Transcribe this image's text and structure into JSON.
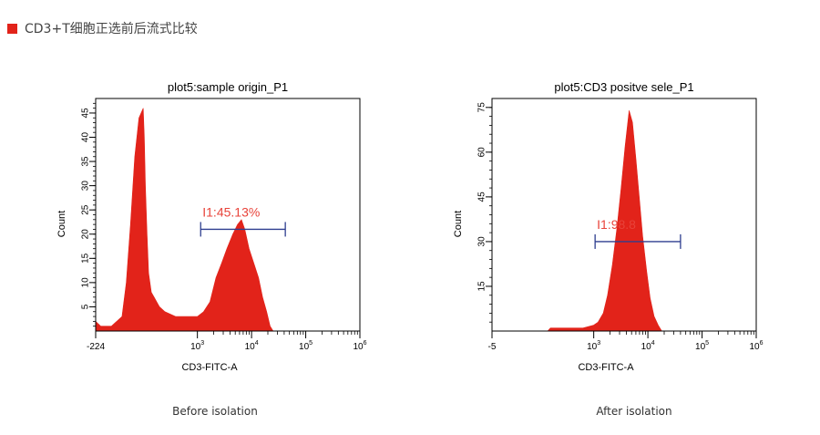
{
  "header": {
    "title": "CD3+T细胞正选前后流式比较",
    "accent_color": "#e2231a"
  },
  "colors": {
    "histogram": "#e2231a",
    "gate": "#2e3e8f",
    "gate_label": "#e8433a",
    "axis": "#000000"
  },
  "captions": [
    "Before isolation",
    "After isolation"
  ],
  "chart_data": [
    {
      "type": "area",
      "title": "plot5:sample origin_P1",
      "xlabel": "CD3-FITC-A",
      "ylabel": "Count",
      "x_scale": "biexponential",
      "xlim": [
        -224,
        1000000
      ],
      "ylim": [
        0,
        48
      ],
      "x_ticks": [
        {
          "value": -224,
          "base": "-224",
          "exp": ""
        },
        {
          "value": 1000,
          "base": "10",
          "exp": "3"
        },
        {
          "value": 10000,
          "base": "10",
          "exp": "4"
        },
        {
          "value": 100000,
          "base": "10",
          "exp": "5"
        },
        {
          "value": 1000000,
          "base": "10",
          "exp": "6"
        }
      ],
      "y_ticks": [
        5,
        10,
        15,
        20,
        25,
        30,
        35,
        40,
        45
      ],
      "gate": {
        "label": "I1:45.13%",
        "x_start": 1150,
        "x_end": 42000,
        "y": 21
      },
      "series": [
        {
          "x": [
            -224,
            -200,
            -150,
            -100,
            -80,
            -60,
            -40,
            -20,
            0,
            20,
            40,
            70,
            100,
            150,
            200,
            300,
            400,
            600,
            800,
            1000,
            1300,
            1700,
            2200,
            2800,
            3500,
            4500,
            5500,
            6500,
            7500,
            9000,
            11000,
            13500,
            16000,
            19000,
            22000,
            25000
          ],
          "y": [
            2,
            1,
            1,
            3,
            10,
            22,
            36,
            44,
            46,
            40,
            30,
            20,
            12,
            8,
            7,
            5,
            4,
            3,
            3,
            3,
            4,
            6,
            11,
            14,
            17,
            20,
            22,
            23,
            21,
            17,
            14,
            11,
            7,
            4,
            1,
            0
          ]
        }
      ]
    },
    {
      "type": "area",
      "title": "plot5:CD3 positve sele_P1",
      "xlabel": "CD3-FITC-A",
      "ylabel": "Count",
      "x_scale": "biexponential",
      "xlim": [
        -5,
        1000000
      ],
      "ylim": [
        0,
        78
      ],
      "x_ticks": [
        {
          "value": -5,
          "base": "-5",
          "exp": ""
        },
        {
          "value": 1000,
          "base": "10",
          "exp": "3"
        },
        {
          "value": 10000,
          "base": "10",
          "exp": "4"
        },
        {
          "value": 100000,
          "base": "10",
          "exp": "5"
        },
        {
          "value": 1000000,
          "base": "10",
          "exp": "6"
        }
      ],
      "y_ticks": [
        15,
        30,
        45,
        60,
        75
      ],
      "gate": {
        "label": "I1:98.8",
        "x_start": 1060,
        "x_end": 40000,
        "y": 30
      },
      "series": [
        {
          "x": [
            150,
            200,
            300,
            400,
            600,
            800,
            1000,
            1200,
            1500,
            1800,
            2200,
            2700,
            3200,
            3800,
            4500,
            5200,
            6000,
            7000,
            8000,
            9500,
            11000,
            13000,
            15500,
            18000
          ],
          "y": [
            0,
            1,
            1,
            1,
            1,
            1,
            2,
            3,
            6,
            12,
            22,
            35,
            48,
            62,
            74,
            70,
            58,
            44,
            32,
            20,
            11,
            5,
            2,
            0
          ]
        }
      ]
    }
  ]
}
